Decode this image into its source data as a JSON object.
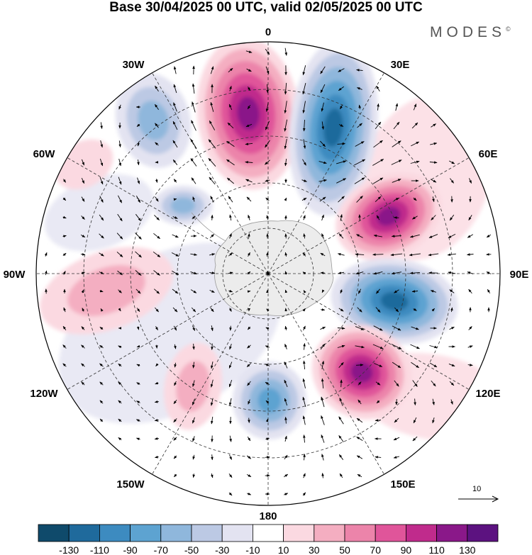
{
  "title": "Base 30/04/2025 00 UTC, valid 02/05/2025 00 UTC",
  "brand": {
    "name": "MODES",
    "mark": "©"
  },
  "map": {
    "projection": "south-polar-stereographic",
    "longitude_labels": [
      "0",
      "30E",
      "60E",
      "90E",
      "120E",
      "150E",
      "180",
      "150W",
      "120W",
      "90W",
      "60W",
      "30W"
    ],
    "landmass": "Antarctica",
    "field": "anomaly shading with wind vectors",
    "anomaly_centers": [
      {
        "name": "positive-north",
        "sign": "positive",
        "level": 130
      },
      {
        "name": "negative-north-northeast",
        "sign": "negative",
        "level": -130
      },
      {
        "name": "positive-northeast",
        "sign": "positive",
        "level": 130
      },
      {
        "name": "negative-east",
        "sign": "negative",
        "level": -130
      },
      {
        "name": "positive-southeast",
        "sign": "positive",
        "level": 130
      },
      {
        "name": "negative-south",
        "sign": "negative",
        "level": -90
      },
      {
        "name": "positive-southwest",
        "sign": "positive",
        "level": 50
      },
      {
        "name": "positive-west",
        "sign": "positive",
        "level": 50
      },
      {
        "name": "negative-northwest",
        "sign": "negative",
        "level": -70
      },
      {
        "name": "negative-west-northwest",
        "sign": "negative",
        "level": -70
      },
      {
        "name": "positive-far-northwest",
        "sign": "positive",
        "level": 30
      }
    ]
  },
  "reference_vector": {
    "label": "10"
  },
  "colorbar": {
    "labels": [
      "-130",
      "-110",
      "-90",
      "-70",
      "-50",
      "-30",
      "-10",
      "10",
      "30",
      "50",
      "70",
      "90",
      "110",
      "130"
    ],
    "colors": [
      "#0f4a6b",
      "#1f6a9c",
      "#3d8bc0",
      "#5da3d1",
      "#8fb7dc",
      "#bcc9e4",
      "#e3e3f1",
      "#ffffff",
      "#fbd9e1",
      "#f4aec1",
      "#ec84aa",
      "#e0559a",
      "#c02b8c",
      "#8a1889",
      "#5c1280"
    ]
  }
}
